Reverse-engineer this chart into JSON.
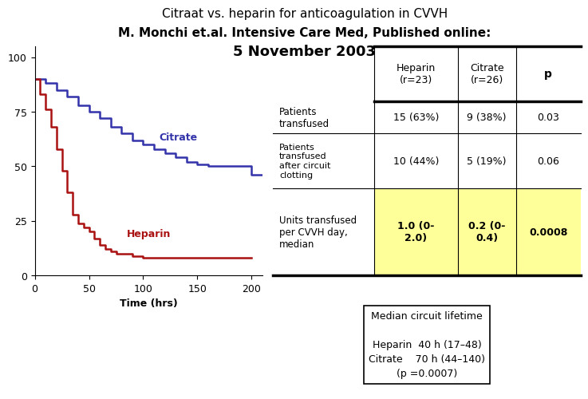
{
  "title_line1": "Citraat vs. heparin for anticoagulation in CVVH",
  "title_line2": "M. Monchi et.al. Intensive Care Med, Published online:",
  "subtitle": "5 November 2003",
  "bg_color": "#FFFFFF",
  "citrate_color": "#3333AA",
  "heparin_color": "#AA1111",
  "citrate_x": [
    0,
    10,
    10,
    20,
    20,
    30,
    30,
    40,
    40,
    50,
    50,
    60,
    60,
    70,
    70,
    80,
    80,
    90,
    90,
    100,
    100,
    110,
    110,
    120,
    120,
    130,
    130,
    140,
    140,
    150,
    150,
    160,
    160,
    170,
    170,
    180,
    180,
    200,
    200,
    210
  ],
  "citrate_y": [
    90,
    90,
    88,
    88,
    85,
    85,
    82,
    82,
    78,
    78,
    75,
    75,
    72,
    72,
    68,
    68,
    65,
    65,
    62,
    62,
    60,
    60,
    58,
    58,
    56,
    56,
    54,
    54,
    52,
    52,
    51,
    51,
    50,
    50,
    50,
    50,
    50,
    50,
    46,
    46
  ],
  "heparin_x": [
    0,
    5,
    5,
    10,
    10,
    15,
    15,
    20,
    20,
    25,
    25,
    30,
    30,
    35,
    35,
    40,
    40,
    45,
    45,
    50,
    50,
    55,
    55,
    60,
    60,
    65,
    65,
    70,
    70,
    75,
    75,
    80,
    80,
    85,
    85,
    90,
    90,
    100,
    100,
    120,
    120,
    200
  ],
  "heparin_y": [
    90,
    90,
    83,
    83,
    76,
    76,
    68,
    68,
    58,
    58,
    48,
    48,
    38,
    38,
    28,
    28,
    24,
    24,
    22,
    22,
    20,
    20,
    17,
    17,
    14,
    14,
    12,
    12,
    11,
    11,
    10,
    10,
    10,
    10,
    10,
    10,
    9,
    9,
    8,
    8,
    8,
    8
  ],
  "xlabel": "Time (hrs)",
  "xlim": [
    0,
    210
  ],
  "ylim": [
    0,
    105
  ],
  "yticks": [
    0,
    25,
    50,
    75,
    100
  ],
  "xticks": [
    0,
    50,
    100,
    150,
    200
  ],
  "highlight_color": "#FFFF99",
  "median_box_text": "Median circuit lifetime\n\nHeparin  40 h (17–48)\nCitrate    70 h (44–140)\n(p =0.0007)",
  "citrate_label": "Citrate",
  "heparin_label": "Heparin"
}
